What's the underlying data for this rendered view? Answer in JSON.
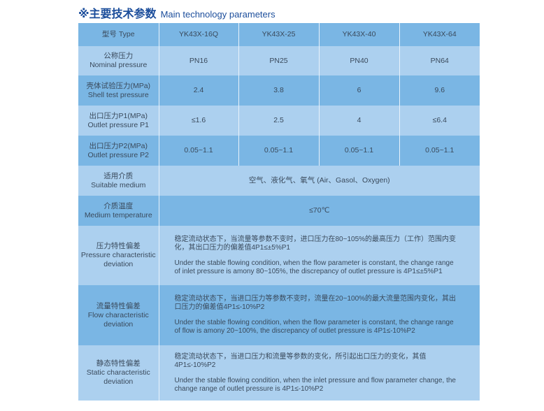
{
  "title": {
    "cn": "※主要技术参数",
    "en": "Main technology parameters"
  },
  "header": {
    "label": "型号 Type",
    "models": [
      "YK43X-16Q",
      "YK43X-25",
      "YK43X-40",
      "YK43X-64"
    ]
  },
  "rows": [
    {
      "cn": "公称压力",
      "en": "Nominal pressure",
      "values": [
        "PN16",
        "PN25",
        "PN40",
        "PN64"
      ]
    },
    {
      "cn": "壳体试验压力(MPa)",
      "en": "Shell test pressure",
      "values": [
        "2.4",
        "3.8",
        "6",
        "9.6"
      ]
    },
    {
      "cn": "出口压力P1(MPa)",
      "en": "Outlet pressure P1",
      "values": [
        "≤1.6",
        "2.5",
        "4",
        "≤6.4"
      ]
    },
    {
      "cn": "出口压力P2(MPa)",
      "en": "Outlet pressure P2",
      "values": [
        "0.05~1.1",
        "0.05~1.1",
        "0.05~1.1",
        "0.05~1.1"
      ]
    }
  ],
  "medium": {
    "cn": "适用介质",
    "en": "Suitable medium",
    "value": "空气、液化气、氧气 (Air、Gasol、Oxygen)"
  },
  "temperature": {
    "cn": "介质温度",
    "en": "Medium temperature",
    "value": "≤70℃"
  },
  "deviations": [
    {
      "cn": "压力特性偏差",
      "en": "Pressure characteristic deviation",
      "text_cn": "稳定流动状态下，当流量等参数不变时，进口压力在80~105%的最高压力（工作）范围内变化，其出口压力的偏差值4P1≤±5%P1",
      "text_en": "Under the stable flowing condition, when the flow parameter is constant, the change range of inlet pressure is amony 80~105%, the discrepancy of outlet pressure is 4P1≤±5%P1"
    },
    {
      "cn": "流量特性偏差",
      "en": "Flow characteristic deviation",
      "text_cn": "稳定流动状态下，当进口压力等参数不变时，流量在20~100%的最大流量范围内变化，其出口压力的偏差值4P1≤-10%P2",
      "text_en": "Under the stable flowing condition, when the flow parameter is constant, the change range of flow is amony 20~100%, the discrepancy of outlet pressure is 4P1≤-10%P2"
    },
    {
      "cn": "静态特性偏差",
      "en": "Static characteristic deviation",
      "text_cn": "稳定流动状态下，当进口压力和流量等参数的变化，所引起出口压力的变化，其值4P1≤-10%P2",
      "text_en": "Under the stable flowing condition, when the inlet pressure and flow parameter change, the change range of outlet pressure is 4P1≤-10%P2"
    }
  ],
  "colors": {
    "dark_row": "#7ab6e4",
    "light_row": "#acd0ef",
    "title": "#1b4d9b"
  }
}
